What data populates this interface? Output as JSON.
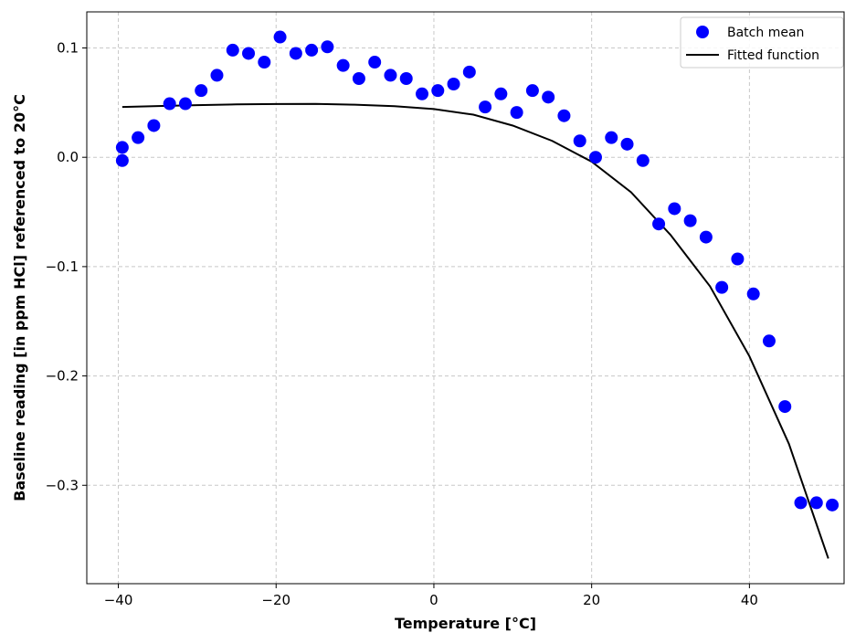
{
  "chart_data": {
    "type": "scatter",
    "xlabel": "Temperature [°C]",
    "ylabel": "Baseline reading [in ppm HCl] referenced to 20°C",
    "xlim": [
      -44,
      52
    ],
    "ylim": [
      -0.39,
      0.133
    ],
    "xticks": [
      -40,
      -20,
      0,
      20,
      40
    ],
    "xtick_labels": [
      "−40",
      "−20",
      "0",
      "20",
      "40"
    ],
    "yticks": [
      -0.3,
      -0.2,
      -0.1,
      0.0,
      0.1
    ],
    "ytick_labels": [
      "−0.3",
      "−0.2",
      "−0.1",
      "0.0",
      "0.1"
    ],
    "grid": true,
    "legend_position": "top-right",
    "series": [
      {
        "name": "Batch mean",
        "kind": "scatter",
        "color": "#0000ff",
        "x": [
          -39.5,
          -39.5,
          -37.5,
          -35.5,
          -33.5,
          -31.5,
          -29.5,
          -27.5,
          -25.5,
          -23.5,
          -21.5,
          -19.5,
          -17.5,
          -15.5,
          -13.5,
          -11.5,
          -9.5,
          -7.5,
          -5.5,
          -3.5,
          -1.5,
          0.5,
          2.5,
          4.5,
          6.5,
          8.5,
          10.5,
          12.5,
          14.5,
          16.5,
          18.5,
          20.5,
          22.5,
          24.5,
          26.5,
          28.5,
          30.5,
          32.5,
          34.5,
          36.5,
          38.5,
          40.5,
          42.5,
          44.5,
          46.5,
          48.5,
          50.5
        ],
        "y": [
          0.009,
          -0.003,
          0.018,
          0.029,
          0.049,
          0.049,
          0.061,
          0.075,
          0.098,
          0.095,
          0.087,
          0.11,
          0.095,
          0.098,
          0.101,
          0.084,
          0.072,
          0.087,
          0.075,
          0.072,
          0.058,
          0.061,
          0.067,
          0.078,
          0.046,
          0.058,
          0.041,
          0.061,
          0.055,
          0.038,
          0.015,
          0.0,
          0.018,
          0.012,
          -0.003,
          -0.061,
          -0.047,
          -0.058,
          -0.073,
          -0.119,
          -0.093,
          -0.125,
          -0.168,
          -0.228,
          -0.316,
          -0.316,
          -0.318
        ]
      },
      {
        "name": "Fitted function",
        "kind": "line",
        "color": "#000000",
        "x": [
          -39.5,
          -35,
          -30,
          -25,
          -20,
          -15,
          -10,
          -5,
          0,
          5,
          10,
          15,
          20,
          25,
          30,
          35,
          40,
          45,
          50
        ],
        "y": [
          0.046,
          0.0468,
          0.0477,
          0.0484,
          0.0487,
          0.0488,
          0.0481,
          0.0467,
          0.0441,
          0.039,
          0.029,
          0.015,
          -0.004,
          -0.032,
          -0.071,
          -0.118,
          -0.182,
          -0.262,
          -0.367
        ]
      }
    ]
  }
}
